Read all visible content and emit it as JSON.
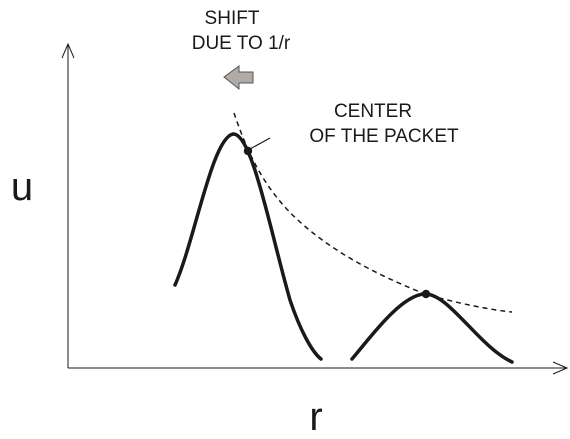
{
  "labels": {
    "shift_line1": "SHIFT",
    "shift_line2": "DUE TO 1/r",
    "center_line1": "CENTER",
    "center_line2": "OF THE PACKET",
    "y_axis": "u",
    "x_axis": "r"
  },
  "colors": {
    "ink": "#1a1a1a",
    "arrow_fill": "#b0aba6",
    "arrow_stroke": "#555555"
  }
}
